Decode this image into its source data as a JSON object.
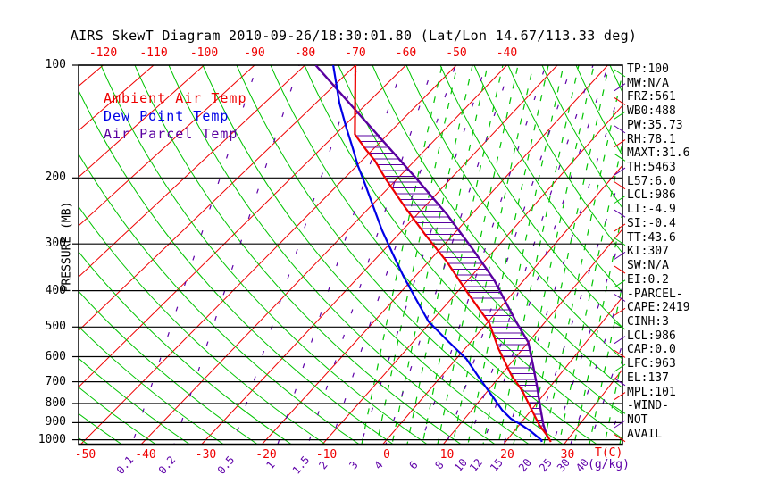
{
  "title": "AIRS SkewT Diagram 2010-09-26/18:30:01.80 (Lat/Lon 14.67/113.33 deg)",
  "palette": {
    "ambient": "#ee0000",
    "dewpoint": "#0000e6",
    "parcel": "#5a00a0",
    "isotherm": "#ee0000",
    "adiabat_green": "#00c400",
    "mixing_purple": "#5e00a8",
    "axis_black": "#000000"
  },
  "legend": [
    {
      "label": "Ambient Air Temp",
      "color_key": "ambient"
    },
    {
      "label": "Dew Point Temp",
      "color_key": "dewpoint"
    },
    {
      "label": "Air Parcel Temp",
      "color_key": "parcel"
    }
  ],
  "axes": {
    "pressure_label": "PRESSURE (MB)",
    "temp_unit": "T(C)",
    "mixing_unit": "(g/kg)",
    "pressure_ticks": [
      100,
      200,
      300,
      400,
      500,
      600,
      700,
      800,
      900,
      1000
    ],
    "top_temp_ticks": [
      -120,
      -110,
      -100,
      -90,
      -80,
      -70,
      -60,
      -50,
      -40
    ],
    "bottom_temp_ticks": [
      -50,
      -40,
      -30,
      -20,
      -10,
      0,
      10,
      20,
      30
    ],
    "mixing_ratio_ticks": [
      0.1,
      0.2,
      0.5,
      1,
      1.5,
      2,
      3,
      4,
      6,
      8,
      10,
      12,
      15,
      20,
      25,
      30,
      40
    ]
  },
  "stats": [
    "TP:100",
    "MW:N/A",
    "FRZ:561",
    "WB0:488",
    "PW:35.73",
    "RH:78.1",
    "MAXT:31.6",
    "TH:5463",
    "L57:6.0",
    "LCL:986",
    "LI:-4.9",
    "SI:-0.4",
    "TT:43.6",
    "KI:307",
    "SW:N/A",
    "EI:0.2",
    "-PARCEL-",
    "CAPE:2419",
    "CINH:3",
    "LCL:986",
    "CAP:0.0",
    "LFC:963",
    "EL:137",
    "MPL:101",
    "-WIND-",
    "NOT",
    "AVAIL"
  ],
  "chart_data": {
    "type": "line",
    "subtype": "skewt-log-p sounding",
    "pressure_unit": "mb",
    "temperature_unit": "C",
    "pressure_scale": "log, 100 (top) to 1000 (bottom)",
    "skew": "isotherms slanted 45 degrees up to the right",
    "grid": {
      "isotherms_c": {
        "min": -160,
        "max": 40,
        "step": 10,
        "style": "red solid"
      },
      "dry_adiabats": "green solid, slanting down to the right",
      "moist_adiabats": "green dashed, right half of chart",
      "mixing_ratio_lines_g_kg": [
        0.1,
        0.2,
        0.5,
        1,
        1.5,
        2,
        3,
        4,
        6,
        8,
        10,
        12,
        15,
        20,
        25,
        30,
        40
      ]
    },
    "hatch": "horizontal purple hatching of CAPE area between Ambient Air Temp and Air Parcel Temp from ~150 mb down to surface",
    "series": [
      {
        "name": "Ambient Air Temp",
        "color_key": "ambient",
        "points_p_t": [
          [
            100,
            -70.0
          ],
          [
            153,
            -56.3
          ],
          [
            168,
            -51.3
          ],
          [
            180,
            -47.5
          ],
          [
            201,
            -42.2
          ],
          [
            239,
            -33.6
          ],
          [
            284,
            -25.0
          ],
          [
            334,
            -16.8
          ],
          [
            403,
            -8.3
          ],
          [
            488,
            0.4
          ],
          [
            570,
            5.7
          ],
          [
            672,
            11.8
          ],
          [
            741,
            15.9
          ],
          [
            833,
            20.1
          ],
          [
            912,
            23.3
          ],
          [
            978,
            26.2
          ],
          [
            1013,
            27.5
          ]
        ]
      },
      {
        "name": "Dew Point Temp",
        "color_key": "dewpoint",
        "points_p_t": [
          [
            100,
            -74.4
          ],
          [
            126,
            -65.5
          ],
          [
            147,
            -59.2
          ],
          [
            166,
            -54.2
          ],
          [
            185,
            -49.9
          ],
          [
            206,
            -45.4
          ],
          [
            239,
            -39.4
          ],
          [
            276,
            -33.7
          ],
          [
            320,
            -27.6
          ],
          [
            367,
            -22.0
          ],
          [
            420,
            -16.3
          ],
          [
            483,
            -10.5
          ],
          [
            545,
            -4.1
          ],
          [
            609,
            1.8
          ],
          [
            690,
            7.1
          ],
          [
            759,
            11.2
          ],
          [
            833,
            15.1
          ],
          [
            879,
            17.8
          ],
          [
            912,
            20.3
          ],
          [
            946,
            22.6
          ],
          [
            1002,
            25.7
          ],
          [
            1013,
            26.0
          ]
        ]
      },
      {
        "name": "Air Parcel Temp",
        "color_key": "parcel",
        "points_p_t": [
          [
            100,
            -77.9
          ],
          [
            201,
            -36.4
          ],
          [
            250,
            -24.6
          ],
          [
            311,
            -13.9
          ],
          [
            373,
            -5.5
          ],
          [
            483,
            4.8
          ],
          [
            549,
            10.0
          ],
          [
            637,
            14.3
          ],
          [
            722,
            17.8
          ],
          [
            821,
            21.2
          ],
          [
            912,
            24.0
          ],
          [
            990,
            26.5
          ]
        ]
      }
    ]
  }
}
